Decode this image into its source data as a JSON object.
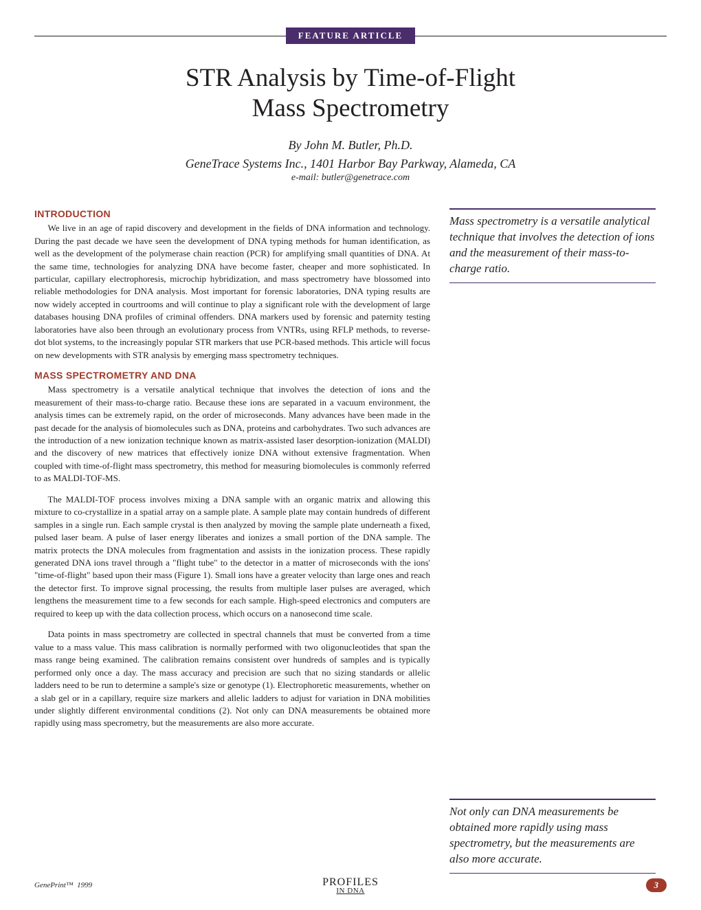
{
  "banner": {
    "label": "FEATURE ARTICLE",
    "bg_color": "#4a2d6b",
    "text_color": "#ffffff"
  },
  "title_line1": "STR Analysis by Time-of-Flight",
  "title_line2": "Mass Spectrometry",
  "author": "By John M. Butler, Ph.D.",
  "affiliation": "GeneTrace Systems Inc., 1401 Harbor Bay Parkway, Alameda, CA",
  "email": "e-mail: butler@genetrace.com",
  "sections": {
    "intro": {
      "heading": "INTRODUCTION",
      "p1": "We live in an age of rapid discovery and development in the fields of DNA information and technology. During the past decade we have seen the development of DNA typing methods for human identification, as well as the development of the polymerase chain reaction (PCR) for amplifying small quantities of DNA. At the same time, technologies for analyzing DNA have become faster, cheaper and more sophisticated. In particular, capillary electrophoresis, microchip hybridization, and mass spectrometry have blossomed into reliable methodologies for DNA analysis. Most important for forensic laboratories, DNA typing results are now widely accepted in courtrooms and will continue to play a significant role with the development of large databases housing DNA profiles of criminal offenders. DNA markers used by forensic and paternity testing laboratories have also been through an evolutionary process from VNTRs, using RFLP methods, to reverse-dot blot systems, to the increasingly popular STR markers that use PCR-based methods. This article will focus on new developments with STR analysis by emerging mass spectrometry techniques."
    },
    "ms": {
      "heading": "MASS SPECTROMETRY AND DNA",
      "p1": "Mass spectrometry is a versatile analytical technique that involves the detection of ions and the measurement of their mass-to-charge ratio. Because these ions are separated in a vacuum environment, the analysis times can be extremely rapid, on the order of microseconds. Many advances have been made in the past decade for the analysis of biomolecules such as DNA, proteins and carbohydrates. Two such advances are the introduction of a new ionization technique known as matrix-assisted laser desorption-ionization (MALDI) and the discovery of new matrices that effectively ionize DNA without extensive fragmentation. When coupled with time-of-flight mass spectrometry, this method for measuring biomolecules is commonly referred to as MALDI-TOF-MS.",
      "p2": "The MALDI-TOF process involves mixing a DNA sample with an organic matrix and allowing this mixture to co-crystallize in a spatial array on a sample plate. A sample plate may contain hundreds of different samples in a single run. Each sample crystal is then analyzed by moving the sample plate underneath a fixed, pulsed laser beam. A pulse of laser energy liberates and ionizes a small portion of the DNA sample. The matrix protects the DNA molecules from fragmentation and assists in the ionization process. These rapidly generated DNA ions travel through a \"flight tube\" to the detector in a matter of microseconds with the ions' \"time-of-flight\" based upon their mass (Figure 1). Small ions have a greater velocity than large ones and reach the detector first. To improve signal processing, the results from multiple laser pulses are averaged, which lengthens the measurement time to a few seconds for each sample. High-speed electronics and computers are required to keep up with the data collection process, which occurs on a nanosecond time scale.",
      "p3": "Data points in mass spectrometry are collected in spectral channels that must be converted from a time value to a mass value. This mass calibration is normally performed with two oligonucleotides that span the mass range being examined. The calibration remains consistent over hundreds of samples and is typically performed only once a day. The mass accuracy and precision are such that no sizing standards or allelic ladders need to be run to determine a sample's size or genotype (1). Electrophoretic measurements, whether on a slab gel or in a capillary, require size markers and allelic ladders to adjust for variation in DNA mobilities under slightly different environmental conditions (2). Not only can DNA measurements be obtained more rapidly using mass specrometry, but the measurements are also more accurate."
    }
  },
  "callouts": {
    "c1": "Mass spectrometry is a versatile analytical technique that involves the detection of ions and the measurement of their mass-to-charge ratio.",
    "c2": "Not only can DNA measurements be obtained more rapidly using mass spectrometry, but the measurements are also more accurate."
  },
  "footer": {
    "brand": "GenePrint™",
    "year": "1999",
    "logo_top": "PROFILES",
    "logo_bottom": "IN DNA",
    "page": "3",
    "page_badge_color": "#a03a2a"
  },
  "colors": {
    "heading_color": "#a03a2a",
    "banner_color": "#4a2d6b",
    "callout_border": "#4a2d6b",
    "text_color": "#231f20",
    "background": "#ffffff"
  },
  "typography": {
    "title_fontsize": 37,
    "byline_fontsize": 18,
    "email_fontsize": 14,
    "section_head_fontsize": 14,
    "body_fontsize": 13,
    "callout_fontsize": 17,
    "body_font": "Georgia, Times New Roman, serif",
    "heading_font": "Arial, Helvetica, sans-serif"
  }
}
